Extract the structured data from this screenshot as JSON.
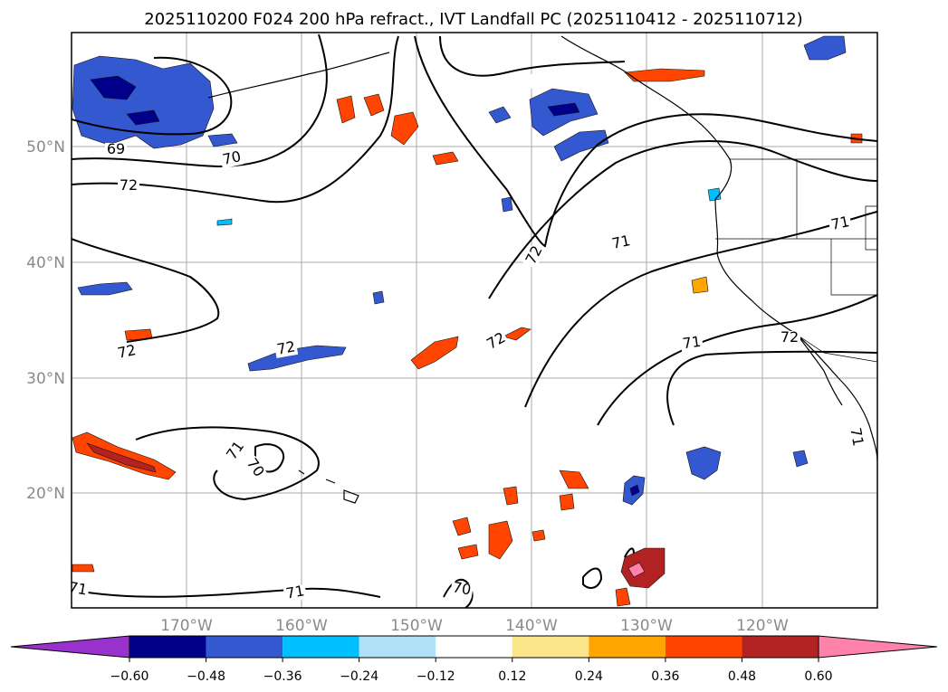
{
  "title": "2025110200 F024 200 hPa refract., IVT Landfall PC (2025110412 - 2025110712)",
  "lat_labels": [
    "50°N",
    "40°N",
    "30°N",
    "20°N"
  ],
  "lon_labels": [
    "170°W",
    "160°W",
    "150°W",
    "140°W",
    "130°W",
    "120°W"
  ],
  "contour_labels": [
    "69",
    "70",
    "72",
    "72",
    "72",
    "71",
    "70",
    "71",
    "71",
    "70",
    "72",
    "72",
    "71",
    "71",
    "72",
    "71",
    "71"
  ],
  "colorbar": {
    "ticks": [
      "−0.60",
      "−0.48",
      "−0.36",
      "−0.24",
      "−0.12",
      "0.12",
      "0.24",
      "0.36",
      "0.48",
      "0.60"
    ],
    "colors": [
      "#9932cc",
      "#00008b",
      "#3458d0",
      "#00bfff",
      "#b0e0f8",
      "#ffffff",
      "#fbe58a",
      "#ffa500",
      "#ff4500",
      "#b22222",
      "#ff82aa"
    ]
  }
}
